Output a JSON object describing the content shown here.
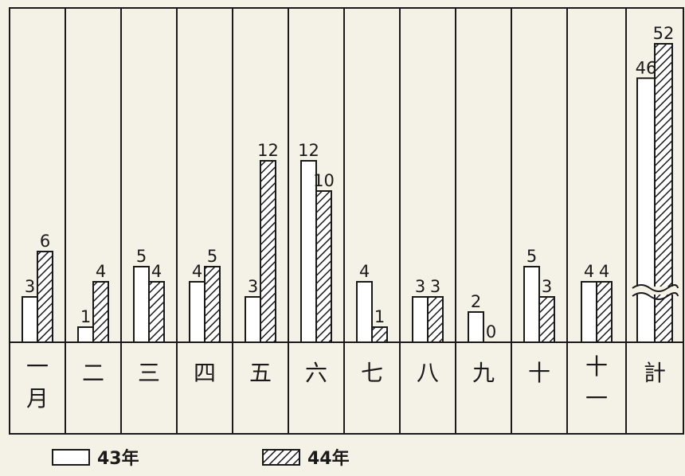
{
  "chart_data": {
    "type": "bar",
    "categories": [
      "一\n月",
      "二",
      "三",
      "四",
      "五",
      "六",
      "七",
      "八",
      "九",
      "十",
      "十\n一",
      "計"
    ],
    "series": [
      {
        "name": "43年",
        "values": [
          3,
          1,
          5,
          4,
          3,
          12,
          4,
          3,
          2,
          5,
          4,
          46
        ]
      },
      {
        "name": "44年",
        "values": [
          6,
          4,
          4,
          5,
          12,
          10,
          1,
          3,
          0,
          3,
          4,
          52
        ]
      }
    ],
    "title": "",
    "xlabel": "",
    "ylabel": "",
    "axis_break_on_last_category": true,
    "grid": false,
    "legend_position": "bottom-left",
    "colors": {
      "series_43": "#ffffff",
      "series_44_hatch": "#1a1a1a",
      "border": "#1a1a1a",
      "background": "#f4f1e6"
    }
  }
}
